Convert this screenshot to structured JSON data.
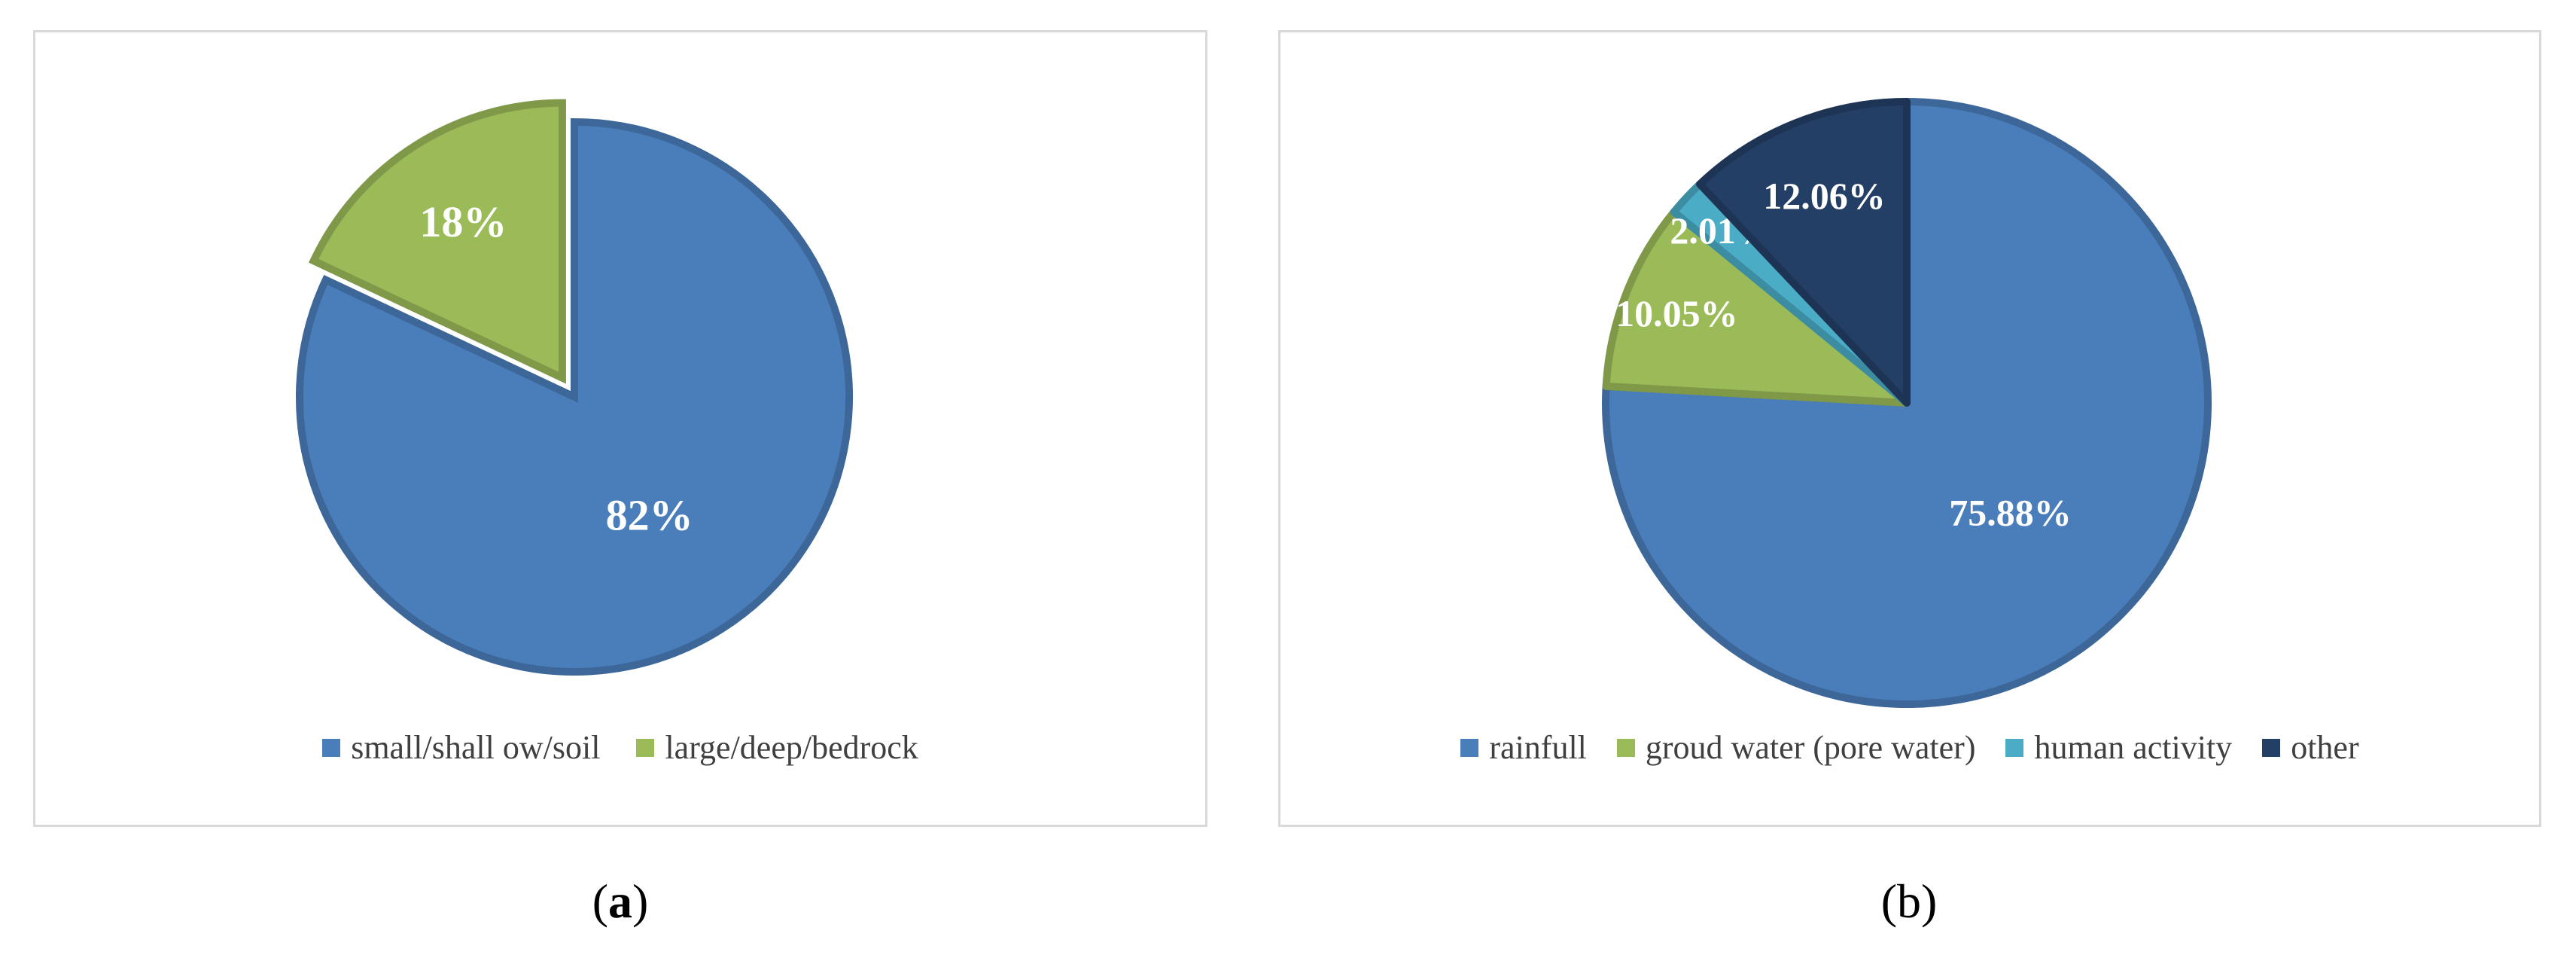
{
  "chart_data": [
    {
      "type": "pie",
      "panel": "(a)",
      "slices": [
        {
          "name": "small/shall ow/soil",
          "value": 82,
          "label": "82%",
          "color": "#4a7ebb"
        },
        {
          "name": "large/deep/bedrock",
          "value": 18,
          "label": "18%",
          "color": "#9bbb59",
          "exploded": true
        }
      ],
      "legend": [
        "small/shall ow/soil",
        "large/deep/bedrock"
      ],
      "legend_position": "bottom"
    },
    {
      "type": "pie",
      "panel": "(b)",
      "slices": [
        {
          "name": "rainfull",
          "value": 75.88,
          "label": "75.88%",
          "color": "#4a7ebb"
        },
        {
          "name": "groud water (pore water)",
          "value": 10.05,
          "label": "10.05%",
          "color": "#9bbb59"
        },
        {
          "name": "human activity",
          "value": 2.01,
          "label": "2.01%",
          "color": "#4bacc6"
        },
        {
          "name": "other",
          "value": 12.06,
          "label": "12.06%",
          "color": "#243f66"
        }
      ],
      "legend": [
        "rainfull",
        "groud water (pore water)",
        "human activity",
        "other"
      ],
      "legend_position": "bottom"
    }
  ],
  "captions": {
    "a": "a",
    "b": "b"
  }
}
